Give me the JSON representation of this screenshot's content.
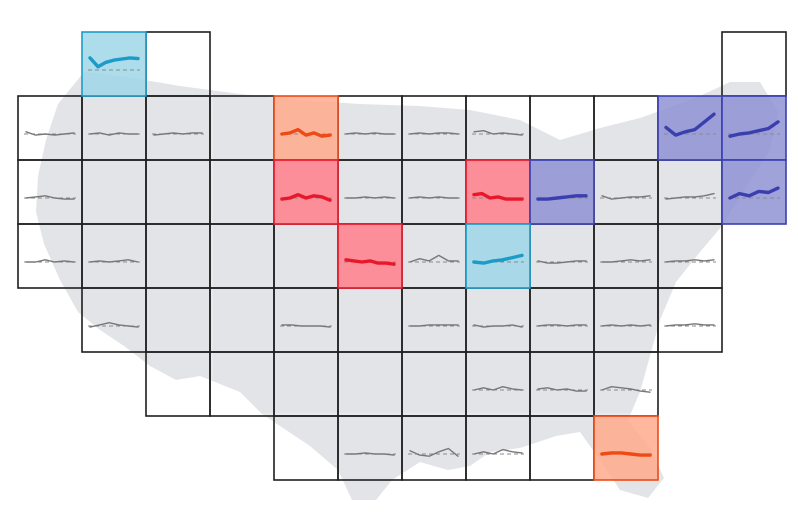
{
  "map": {
    "type": "tile-grid-map",
    "region": "",
    "colors": {
      "background": "#ffffff",
      "land": "#e3e4e7",
      "grid_line": "#1e1e1e",
      "neutral_line": "#777777",
      "baseline": "#8a8a8a",
      "highlight_blue": "#1b9cc8",
      "highlight_blue_fill": "#9fd6e8",
      "highlight_red": "#e8182c",
      "highlight_red_fill": "#ff7f89",
      "highlight_orange": "#ee4a16",
      "highlight_orange_fill": "#ffab8c",
      "highlight_indigo": "#3b3fae",
      "highlight_indigo_fill": "#8f93d4"
    },
    "tiles": [
      {
        "row": 0,
        "col": 1,
        "trend": [
          0.55,
          0.15,
          0.35,
          0.45,
          0.5,
          0.55,
          0.52
        ],
        "highlight": "blue"
      },
      {
        "row": 0,
        "col": 2,
        "trend": [],
        "highlight": "none"
      },
      {
        "row": 0,
        "col": 11,
        "trend": [],
        "highlight": "none"
      },
      {
        "row": 1,
        "col": 0,
        "trend": [
          0.1,
          -0.05,
          0.0,
          -0.05,
          0.0,
          0.05
        ],
        "highlight": "none"
      },
      {
        "row": 1,
        "col": 1,
        "trend": [
          0.0,
          0.05,
          -0.05,
          0.05,
          0.0,
          0.0
        ],
        "highlight": "none"
      },
      {
        "row": 1,
        "col": 2,
        "trend": [
          -0.05,
          0.0,
          0.05,
          0.0,
          0.05,
          0.05
        ],
        "highlight": "none"
      },
      {
        "row": 1,
        "col": 3,
        "trend": [],
        "highlight": "none"
      },
      {
        "row": 1,
        "col": 4,
        "trend": [
          0.0,
          0.05,
          0.2,
          -0.05,
          0.05,
          -0.1,
          -0.05
        ],
        "highlight": "orange"
      },
      {
        "row": 1,
        "col": 5,
        "trend": [
          0.0,
          0.05,
          0.0,
          0.05,
          0.0,
          0.0
        ],
        "highlight": "none"
      },
      {
        "row": 1,
        "col": 6,
        "trend": [
          0.0,
          0.05,
          0.0,
          0.05,
          0.05,
          0.0
        ],
        "highlight": "none"
      },
      {
        "row": 1,
        "col": 7,
        "trend": [
          0.1,
          0.15,
          0.0,
          0.05,
          0.0,
          -0.05
        ],
        "highlight": "none"
      },
      {
        "row": 1,
        "col": 8,
        "trend": [],
        "highlight": "none"
      },
      {
        "row": 1,
        "col": 9,
        "trend": [],
        "highlight": "none"
      },
      {
        "row": 1,
        "col": 10,
        "trend": [
          0.3,
          -0.05,
          0.1,
          0.2,
          0.55,
          0.9
        ],
        "highlight": "indigo"
      },
      {
        "row": 1,
        "col": 11,
        "trend": [
          -0.1,
          0.0,
          0.05,
          0.15,
          0.25,
          0.55
        ],
        "highlight": "indigo"
      },
      {
        "row": 2,
        "col": 0,
        "trend": [
          0.0,
          0.05,
          0.1,
          0.0,
          -0.05,
          -0.05
        ],
        "highlight": "none"
      },
      {
        "row": 2,
        "col": 1,
        "trend": [],
        "highlight": "none"
      },
      {
        "row": 2,
        "col": 2,
        "trend": [],
        "highlight": "none"
      },
      {
        "row": 2,
        "col": 3,
        "trend": [],
        "highlight": "none"
      },
      {
        "row": 2,
        "col": 4,
        "trend": [
          -0.05,
          0.0,
          0.15,
          0.0,
          0.1,
          0.05,
          -0.1
        ],
        "highlight": "red"
      },
      {
        "row": 2,
        "col": 5,
        "trend": [
          0.0,
          0.0,
          0.05,
          0.0,
          0.05,
          0.0
        ],
        "highlight": "none"
      },
      {
        "row": 2,
        "col": 6,
        "trend": [
          0.0,
          0.05,
          0.0,
          0.05,
          0.0,
          0.0
        ],
        "highlight": "none"
      },
      {
        "row": 2,
        "col": 7,
        "trend": [
          0.15,
          0.2,
          0.0,
          0.05,
          -0.05,
          -0.05,
          -0.05
        ],
        "highlight": "red"
      },
      {
        "row": 2,
        "col": 8,
        "trend": [
          -0.05,
          -0.05,
          0.0,
          0.05,
          0.1,
          0.1
        ],
        "highlight": "indigo"
      },
      {
        "row": 2,
        "col": 9,
        "trend": [
          0.1,
          -0.05,
          0.0,
          0.05,
          0.05,
          0.1
        ],
        "highlight": "none"
      },
      {
        "row": 2,
        "col": 10,
        "trend": [
          -0.05,
          0.0,
          0.05,
          0.05,
          0.1,
          0.2
        ],
        "highlight": "none"
      },
      {
        "row": 2,
        "col": 11,
        "trend": [
          0.0,
          0.2,
          0.1,
          0.3,
          0.25,
          0.45
        ],
        "highlight": "indigo"
      },
      {
        "row": 3,
        "col": 0,
        "trend": [
          0.0,
          0.0,
          0.1,
          0.0,
          0.05,
          0.0
        ],
        "highlight": "none"
      },
      {
        "row": 3,
        "col": 1,
        "trend": [
          0.0,
          0.05,
          0.0,
          0.05,
          0.1,
          0.0
        ],
        "highlight": "none"
      },
      {
        "row": 3,
        "col": 2,
        "trend": [],
        "highlight": "none"
      },
      {
        "row": 3,
        "col": 3,
        "trend": [],
        "highlight": "none"
      },
      {
        "row": 3,
        "col": 4,
        "trend": [],
        "highlight": "none"
      },
      {
        "row": 3,
        "col": 5,
        "trend": [
          0.1,
          0.05,
          0.0,
          0.05,
          -0.05,
          -0.05,
          -0.1
        ],
        "highlight": "red"
      },
      {
        "row": 3,
        "col": 6,
        "trend": [
          0.0,
          0.15,
          0.05,
          0.3,
          0.05,
          0.05
        ],
        "highlight": "none"
      },
      {
        "row": 3,
        "col": 7,
        "trend": [
          0.0,
          -0.05,
          0.05,
          0.1,
          0.2,
          0.3
        ],
        "highlight": "blue"
      },
      {
        "row": 3,
        "col": 8,
        "trend": [
          0.05,
          -0.05,
          -0.05,
          0.0,
          0.05,
          0.05
        ],
        "highlight": "none"
      },
      {
        "row": 3,
        "col": 9,
        "trend": [
          0.0,
          0.0,
          0.05,
          0.1,
          0.05,
          0.1
        ],
        "highlight": "none"
      },
      {
        "row": 3,
        "col": 10,
        "trend": [
          0.0,
          0.05,
          0.05,
          0.1,
          0.05,
          0.1
        ],
        "highlight": "none"
      },
      {
        "row": 4,
        "col": 1,
        "trend": [
          -0.05,
          0.05,
          0.15,
          0.05,
          0.0,
          -0.05
        ],
        "highlight": "none"
      },
      {
        "row": 4,
        "col": 2,
        "trend": [],
        "highlight": "none"
      },
      {
        "row": 4,
        "col": 3,
        "trend": [],
        "highlight": "none"
      },
      {
        "row": 4,
        "col": 4,
        "trend": [
          0.05,
          0.05,
          0.0,
          0.0,
          0.0,
          -0.05
        ],
        "highlight": "none"
      },
      {
        "row": 4,
        "col": 5,
        "trend": [],
        "highlight": "none"
      },
      {
        "row": 4,
        "col": 6,
        "trend": [
          0.0,
          0.0,
          0.05,
          0.05,
          0.05,
          0.05
        ],
        "highlight": "none"
      },
      {
        "row": 4,
        "col": 7,
        "trend": [
          0.05,
          -0.05,
          0.0,
          0.0,
          0.05,
          -0.05
        ],
        "highlight": "none"
      },
      {
        "row": 4,
        "col": 8,
        "trend": [
          0.0,
          0.05,
          0.05,
          0.0,
          0.05,
          0.05
        ],
        "highlight": "none"
      },
      {
        "row": 4,
        "col": 9,
        "trend": [
          0.0,
          0.05,
          0.0,
          0.05,
          0.0,
          0.05
        ],
        "highlight": "none"
      },
      {
        "row": 4,
        "col": 10,
        "trend": [
          0.0,
          0.05,
          0.05,
          0.1,
          0.05,
          0.05
        ],
        "highlight": "none"
      },
      {
        "row": 5,
        "col": 2,
        "trend": [],
        "highlight": "none"
      },
      {
        "row": 5,
        "col": 3,
        "trend": [],
        "highlight": "none"
      },
      {
        "row": 5,
        "col": 4,
        "trend": [],
        "highlight": "none"
      },
      {
        "row": 5,
        "col": 5,
        "trend": [],
        "highlight": "none"
      },
      {
        "row": 5,
        "col": 6,
        "trend": [],
        "highlight": "none"
      },
      {
        "row": 5,
        "col": 7,
        "trend": [
          0.0,
          0.1,
          0.0,
          0.15,
          0.05,
          0.0
        ],
        "highlight": "none"
      },
      {
        "row": 5,
        "col": 8,
        "trend": [
          0.05,
          0.1,
          0.0,
          0.05,
          -0.05,
          -0.05
        ],
        "highlight": "none"
      },
      {
        "row": 5,
        "col": 9,
        "trend": [
          0.0,
          0.15,
          0.1,
          0.05,
          -0.05,
          -0.1
        ],
        "highlight": "none"
      },
      {
        "row": 6,
        "col": 4,
        "trend": [],
        "highlight": "none"
      },
      {
        "row": 6,
        "col": 5,
        "trend": [
          0.0,
          0.0,
          0.05,
          0.0,
          0.0,
          -0.05
        ],
        "highlight": "none"
      },
      {
        "row": 6,
        "col": 6,
        "trend": [
          0.15,
          -0.05,
          -0.1,
          0.1,
          0.25,
          -0.1
        ],
        "highlight": "none"
      },
      {
        "row": 6,
        "col": 7,
        "trend": [
          0.0,
          0.1,
          0.0,
          0.2,
          0.1,
          0.05
        ],
        "highlight": "none"
      },
      {
        "row": 6,
        "col": 8,
        "trend": [],
        "highlight": "none"
      },
      {
        "row": 6,
        "col": 9,
        "trend": [
          0.0,
          0.05,
          0.05,
          0.0,
          -0.05,
          -0.05
        ],
        "highlight": "orange"
      }
    ]
  }
}
